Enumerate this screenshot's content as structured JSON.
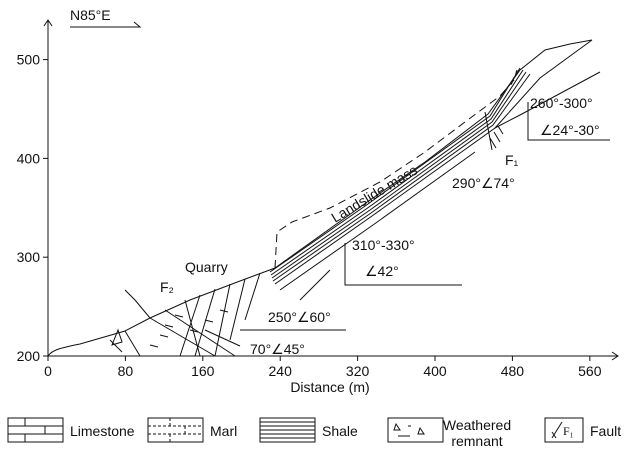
{
  "axes": {
    "xlabel": "Distance (m)",
    "xlim": [
      0,
      585
    ],
    "ylim": [
      200,
      535
    ],
    "xticks": [
      0,
      80,
      160,
      240,
      320,
      400,
      480,
      560
    ],
    "yticks": [
      200,
      300,
      400,
      500
    ]
  },
  "annotations": {
    "direction": "N85°E",
    "landslide": "Landslide mass",
    "quarry": "Quarry",
    "fault1": "F₁",
    "fault2": "F₂",
    "f1_attitude": "290°∠74°",
    "upper_strike": "260°-300°",
    "upper_dip": "∠24°-30°",
    "middle_strike": "310°-330°",
    "middle_dip": "∠42°",
    "lower_a": "250°∠60°",
    "lower_b": "70°∠45°"
  },
  "legend": [
    {
      "label": "Limestone"
    },
    {
      "label": "Marl"
    },
    {
      "label": "Shale"
    },
    {
      "label": "Weathered remnant"
    },
    {
      "label": "Fault",
      "symbol": "F₁"
    }
  ]
}
